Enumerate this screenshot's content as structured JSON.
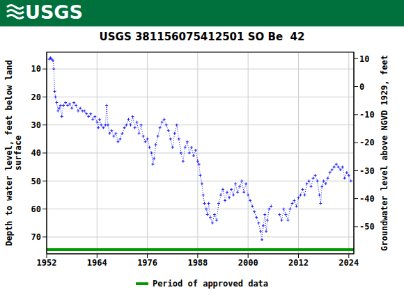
{
  "chart_data": {
    "type": "line",
    "logo": "USGS",
    "title": "USGS 381156075412501 SO Be  42",
    "y_label": "Depth to water level, feet below land\nsurface",
    "y2_label": "Groundwater level above NGVD 1929, feet",
    "xlim": [
      1952,
      2025.2
    ],
    "xticks": [
      1952,
      1964,
      1976,
      1988,
      2000,
      2012,
      2024
    ],
    "ylim": [
      76,
      4
    ],
    "yticks": [
      10,
      20,
      30,
      40,
      50,
      60,
      70
    ],
    "y2lim": [
      -59.7,
      12.3
    ],
    "y2ticks": [
      10,
      0,
      -10,
      -20,
      -30,
      -40,
      -50
    ],
    "grid": true,
    "legend": "bottom",
    "series": [
      {
        "color": "#1a1aff",
        "marker": "plus",
        "line_style": "dotted",
        "x": [
          1952.6,
          1952.9,
          1953.2,
          1953.5,
          1953.7,
          1953.9,
          1954.1,
          1954.4,
          1954.7,
          1955.0,
          1955.3,
          1955.6,
          1956.0,
          1956.5,
          1957.0,
          1957.5,
          1958.0,
          1958.5,
          1959.0,
          1959.5,
          1960.0,
          1960.5,
          1961.0,
          1961.5,
          1962.0,
          1962.5,
          1963.0,
          1963.5,
          1964.0,
          1964.3,
          1964.6,
          1965.0,
          1965.5,
          1966.0,
          1966.3,
          1966.6,
          1967.0,
          1967.5,
          1968.0,
          1968.5,
          1969.0,
          1969.5,
          1970.0,
          1970.5,
          1971.0,
          1971.5,
          1972.0,
          1972.5,
          1973.0,
          1973.5,
          1974.0,
          1974.5,
          1975.0,
          1975.5,
          1976.0,
          1976.5,
          1977.0,
          1977.3,
          1977.6,
          1978.0,
          1978.5,
          1979.0,
          1979.5,
          1980.0,
          1980.5,
          1981.0,
          1981.5,
          1982.0,
          1982.5,
          1983.0,
          1983.5,
          1984.0,
          1984.5,
          1985.0,
          1985.5,
          1986.0,
          1986.5,
          1987.0,
          1987.5,
          1988.0,
          1988.3,
          1988.6,
          1989.0,
          1989.3,
          1989.6,
          1990.0,
          1990.3,
          1990.6,
          1991.0,
          1991.5,
          1992.0,
          1992.5,
          1993.0,
          1993.5,
          1994.0,
          1994.5,
          1995.0,
          1995.5,
          1996.0,
          1996.5,
          1997.0,
          1997.5,
          1998.0,
          1998.5,
          1999.0,
          1999.5,
          2000.0,
          2000.5,
          2001.0,
          2001.5,
          2002.0,
          2002.5,
          2003.0,
          2003.3,
          2003.6,
          2004.0,
          2004.3,
          2004.6,
          2005.0,
          2005.5,
          2006.5,
          2007.5,
          2008.0,
          2008.5,
          2009.0,
          2009.5,
          2010.0,
          2010.5,
          2011.0,
          2011.5,
          2012.0,
          2012.5,
          2013.0,
          2013.5,
          2014.0,
          2014.5,
          2015.0,
          2015.5,
          2016.0,
          2016.5,
          2017.0,
          2017.3,
          2017.6,
          2018.0,
          2018.5,
          2019.0,
          2019.5,
          2020.0,
          2020.5,
          2021.0,
          2021.5,
          2022.0,
          2022.5,
          2023.0,
          2023.5,
          2024.0,
          2024.5
        ],
        "values": [
          6.5,
          6,
          6.5,
          7,
          10,
          18,
          20,
          22,
          25,
          24,
          23,
          27,
          23,
          22,
          23,
          22.5,
          24,
          22,
          23,
          25,
          24,
          25,
          25,
          26,
          27,
          26,
          28,
          27,
          29,
          31,
          28,
          30,
          31,
          30,
          23,
          30,
          33,
          32,
          34,
          33,
          36,
          35,
          33,
          31,
          30,
          28,
          30,
          27,
          31,
          29,
          33,
          30,
          34,
          36,
          35,
          38,
          40,
          44,
          42,
          37,
          34,
          31,
          29,
          28,
          30,
          32,
          35,
          38,
          33,
          30,
          35,
          40,
          43,
          38,
          36,
          40,
          38,
          41,
          39,
          43,
          44,
          48,
          51,
          55,
          58,
          60,
          62,
          58,
          63,
          65,
          62,
          64,
          58,
          55,
          53,
          57,
          54,
          56,
          53,
          55,
          51,
          54,
          52,
          50,
          54,
          51,
          55,
          57,
          59,
          61,
          63,
          65,
          68,
          71,
          66,
          62,
          68,
          64,
          60,
          59,
          null,
          62,
          64,
          60,
          62,
          64,
          60,
          58,
          57,
          59,
          56,
          55,
          53,
          55,
          51,
          50,
          52,
          49,
          48,
          50,
          55,
          58,
          52,
          50,
          51,
          49,
          47,
          46,
          45,
          44,
          45,
          46,
          45,
          49,
          47,
          48,
          50
        ]
      },
      {
        "name": "Period of approved data",
        "color": "#009900",
        "line_style": "solid",
        "x": [
          1952,
          2025.2
        ],
        "values": [
          74.5,
          74.5
        ]
      }
    ]
  }
}
